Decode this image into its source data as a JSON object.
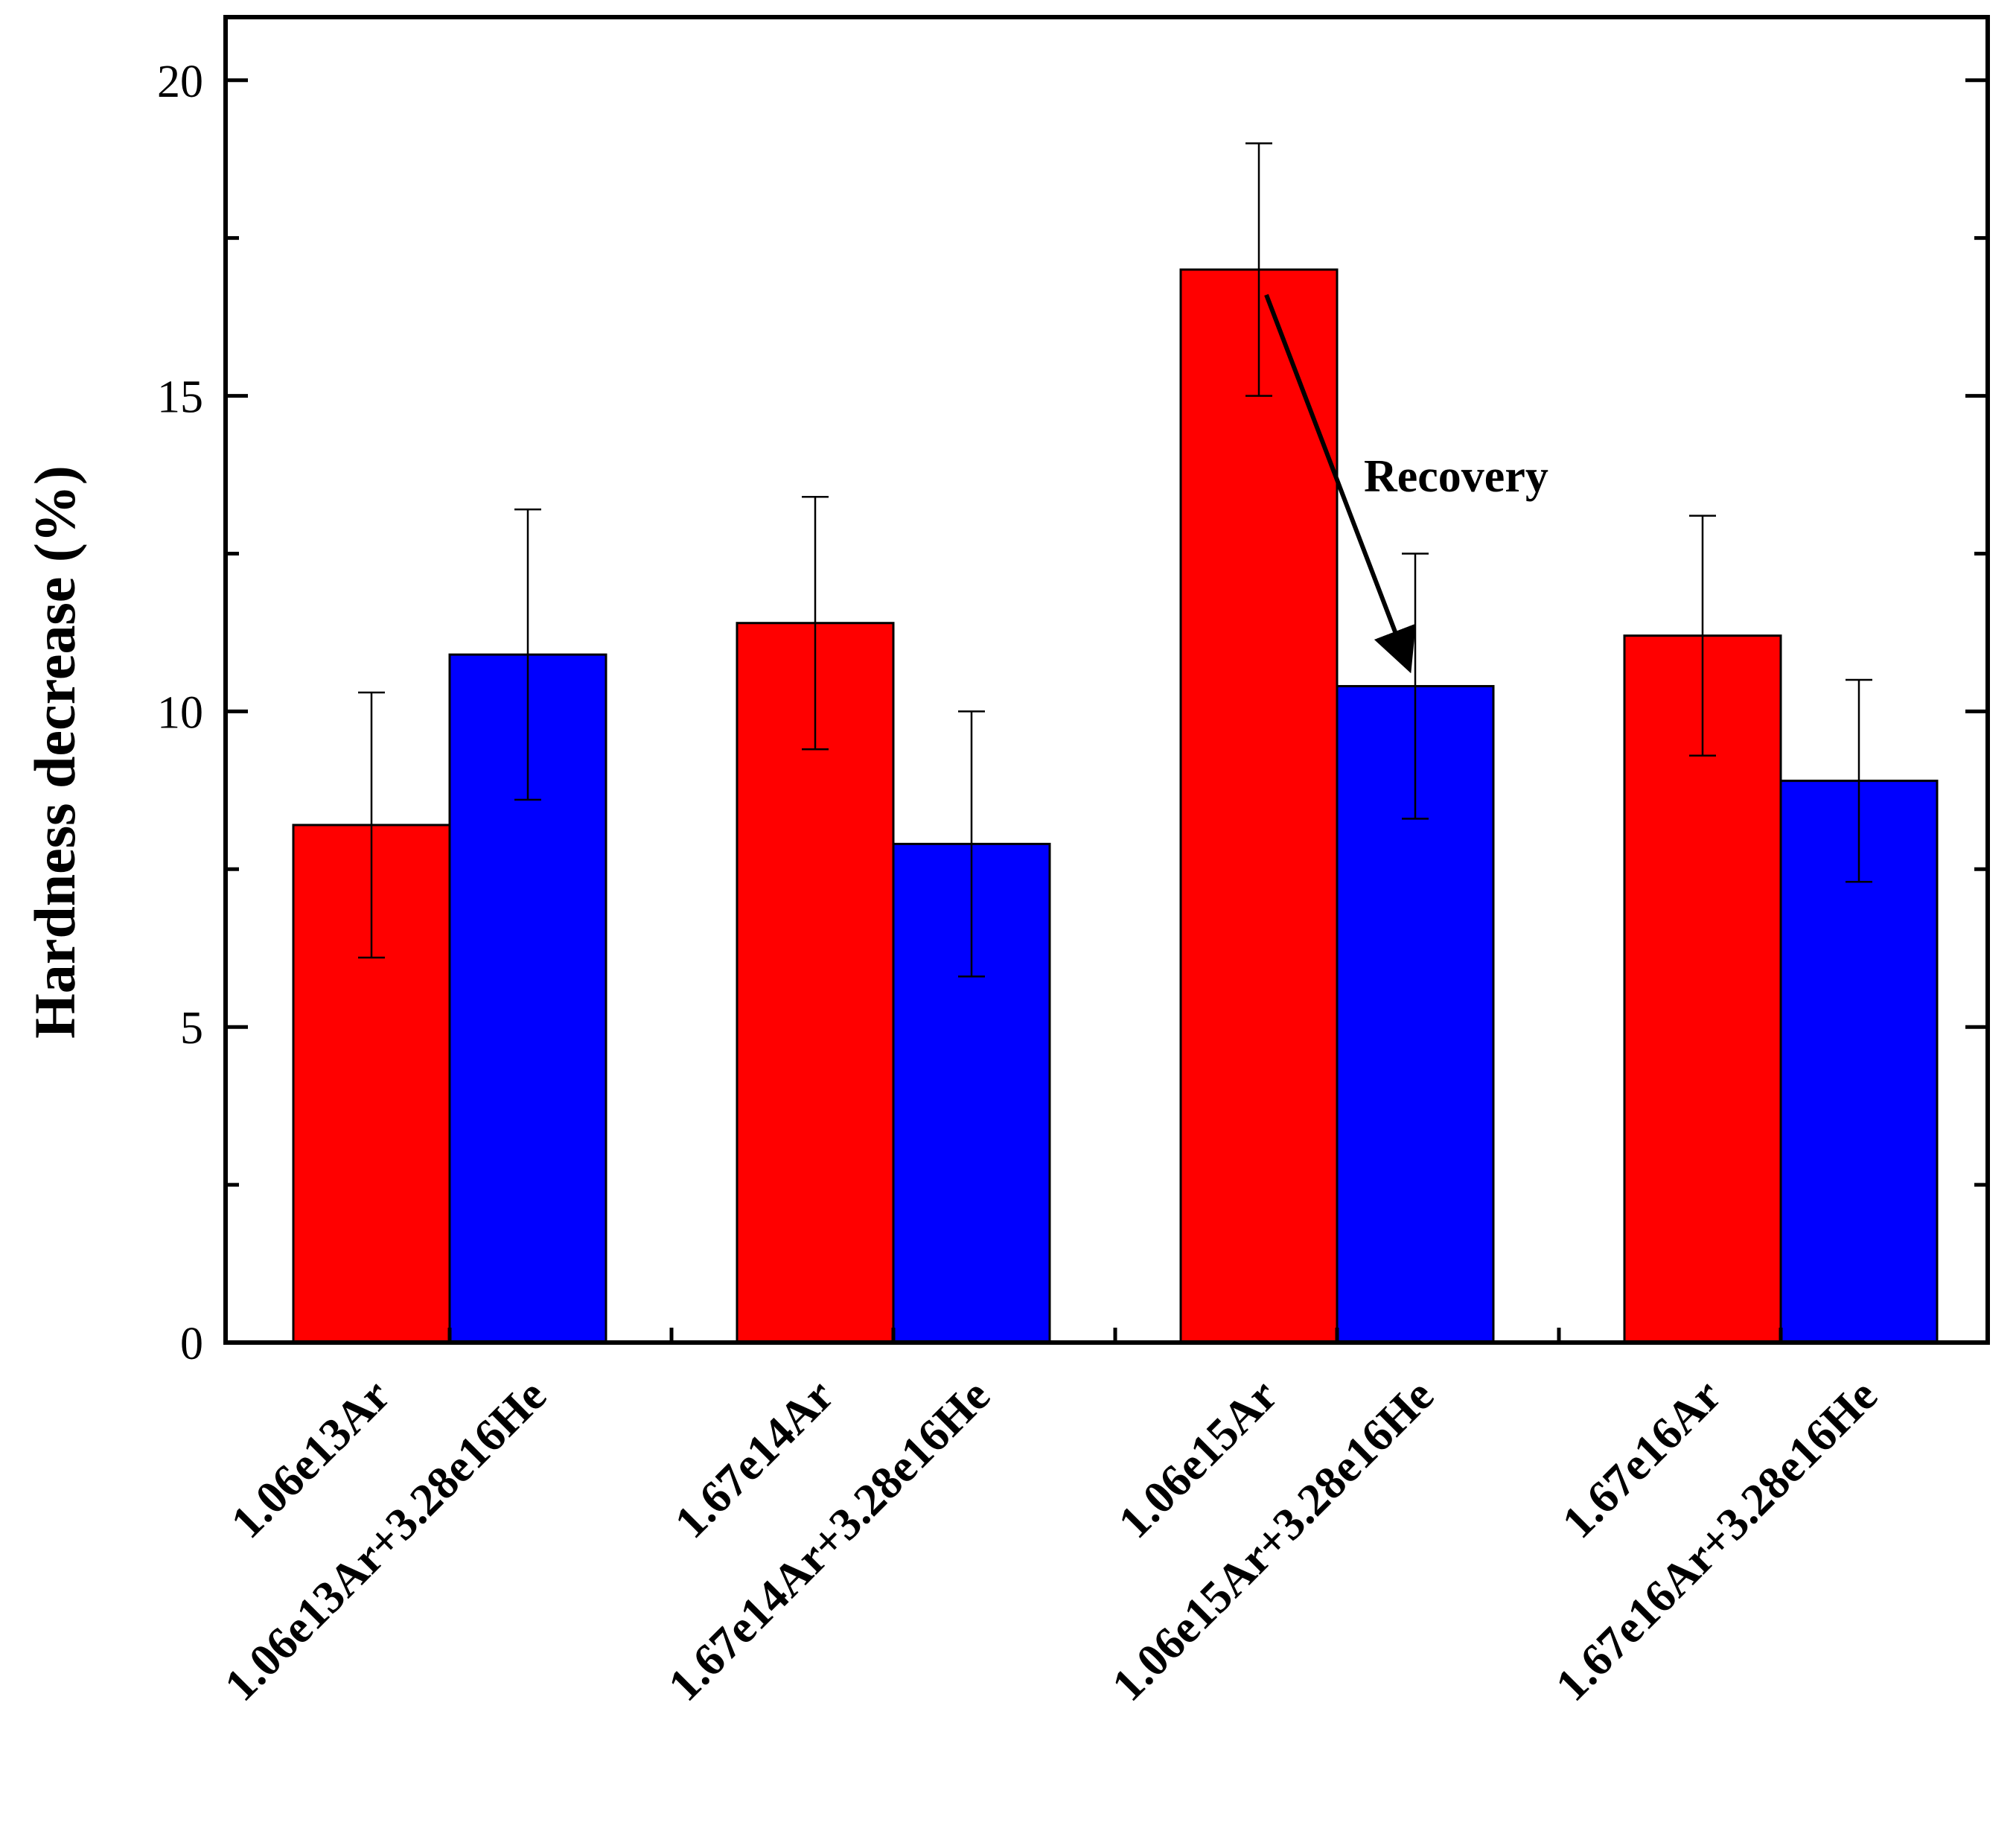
{
  "chart_data": {
    "type": "bar",
    "title": "",
    "xlabel": "",
    "ylabel": "Hardness decrease (%)",
    "ylim": [
      0,
      21
    ],
    "yticks": [
      0,
      5,
      10,
      15,
      20
    ],
    "grid": false,
    "bars": [
      {
        "label": "1.06e13Ar",
        "value": 8.2,
        "error": 2.1,
        "color": "#ff0000"
      },
      {
        "label": "1.06e13Ar+3.28e16He",
        "value": 10.9,
        "error": 2.3,
        "color": "#0000ff"
      },
      {
        "label": "1.67e14Ar",
        "value": 11.4,
        "error": 2.0,
        "color": "#ff0000"
      },
      {
        "label": "1.67e14Ar+3.28e16He",
        "value": 7.9,
        "error": 2.1,
        "color": "#0000ff"
      },
      {
        "label": "1.06e15Ar",
        "value": 17.0,
        "error": 2.0,
        "color": "#ff0000"
      },
      {
        "label": "1.06e15Ar+3.28e16He",
        "value": 10.4,
        "error": 2.1,
        "color": "#0000ff"
      },
      {
        "label": "1.67e16Ar",
        "value": 11.2,
        "error": 1.9,
        "color": "#ff0000"
      },
      {
        "label": "1.67e16Ar+3.28e16He",
        "value": 8.9,
        "error": 1.6,
        "color": "#0000ff"
      }
    ],
    "annotation": {
      "text": "Recovery",
      "arrow_from": {
        "bar_index": 4,
        "value": 16.6
      },
      "arrow_to": {
        "bar_index": 5,
        "value": 10.5
      }
    }
  }
}
